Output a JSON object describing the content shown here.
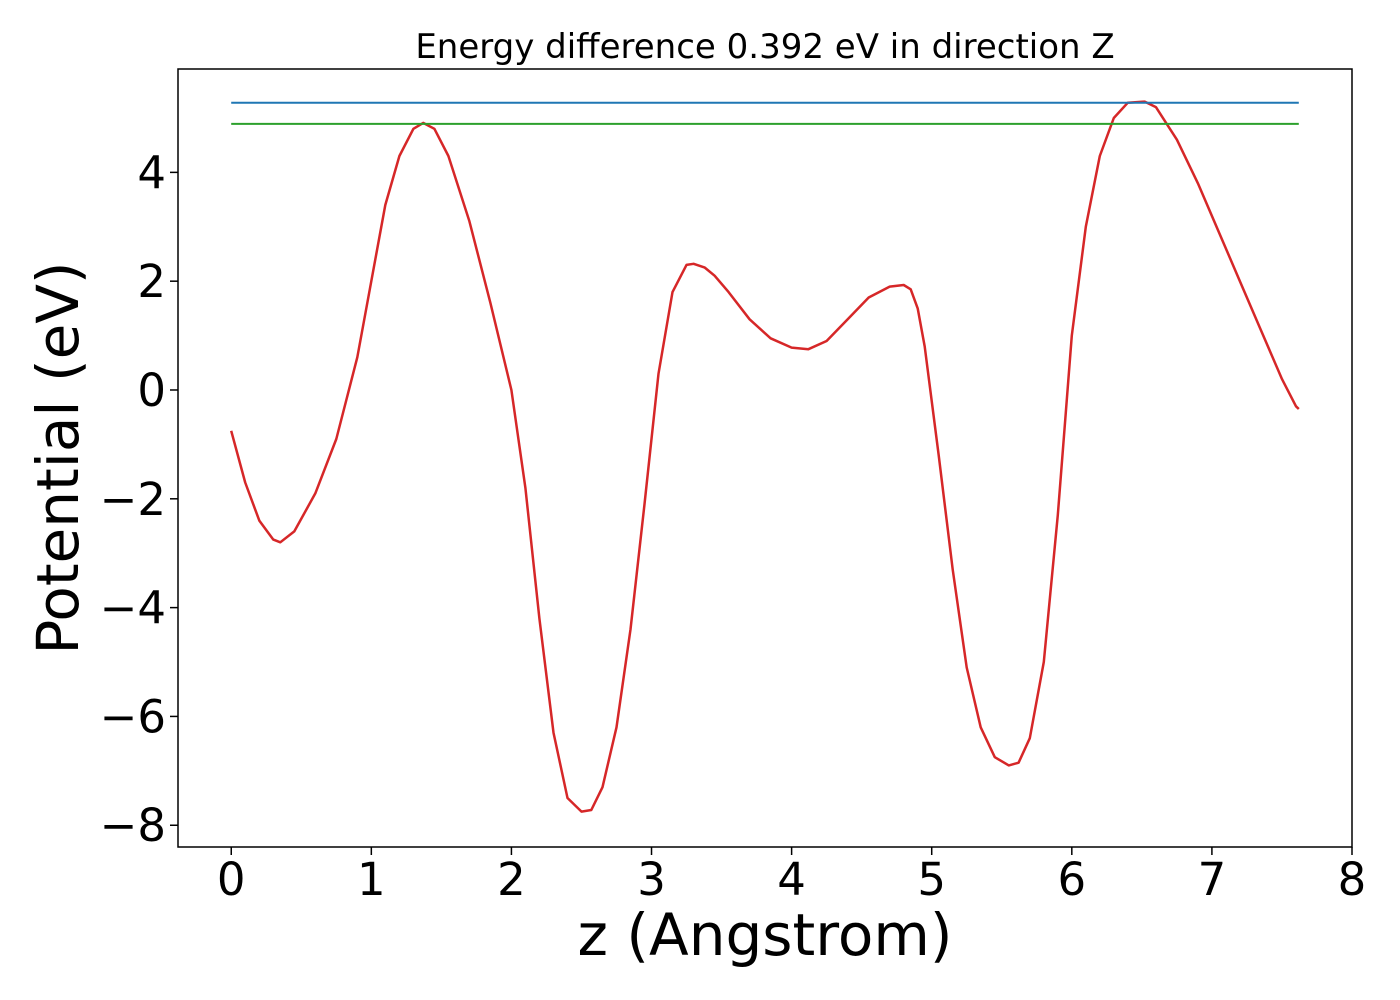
{
  "chart_data": {
    "type": "line",
    "title": "Energy difference 0.392 eV in direction Z",
    "xlabel": "z (Angstrom)",
    "ylabel": "Potential (eV)",
    "xlim": [
      -0.38,
      8.0
    ],
    "ylim": [
      -8.4,
      5.9
    ],
    "xticks": [
      0,
      1,
      2,
      3,
      4,
      5,
      6,
      7,
      8
    ],
    "xtick_labels": [
      "0",
      "1",
      "2",
      "3",
      "4",
      "5",
      "6",
      "7",
      "8"
    ],
    "yticks": [
      -8,
      -6,
      -4,
      -2,
      0,
      2,
      4
    ],
    "ytick_labels": [
      "−8",
      "−6",
      "−4",
      "−2",
      "0",
      "2",
      "4"
    ],
    "grid": false,
    "series": [
      {
        "color": "#d62728",
        "x": [
          0.0,
          0.1,
          0.2,
          0.3,
          0.35,
          0.45,
          0.6,
          0.75,
          0.9,
          1.0,
          1.1,
          1.2,
          1.3,
          1.37,
          1.45,
          1.55,
          1.7,
          1.85,
          2.0,
          2.1,
          2.2,
          2.3,
          2.4,
          2.5,
          2.57,
          2.65,
          2.75,
          2.85,
          2.95,
          3.05,
          3.15,
          3.25,
          3.3,
          3.38,
          3.45,
          3.55,
          3.7,
          3.85,
          4.0,
          4.12,
          4.25,
          4.4,
          4.55,
          4.7,
          4.8,
          4.85,
          4.9,
          4.95,
          5.05,
          5.15,
          5.25,
          5.35,
          5.45,
          5.55,
          5.62,
          5.7,
          5.8,
          5.9,
          6.0,
          6.1,
          6.2,
          6.3,
          6.4,
          6.52,
          6.6,
          6.75,
          6.9,
          7.05,
          7.2,
          7.35,
          7.5,
          7.6,
          7.62
        ],
        "y": [
          -0.75,
          -1.7,
          -2.4,
          -2.75,
          -2.8,
          -2.6,
          -1.9,
          -0.9,
          0.6,
          2.0,
          3.4,
          4.3,
          4.8,
          4.91,
          4.8,
          4.3,
          3.1,
          1.6,
          0.0,
          -1.8,
          -4.2,
          -6.3,
          -7.5,
          -7.75,
          -7.72,
          -7.3,
          -6.2,
          -4.4,
          -2.1,
          0.3,
          1.8,
          2.3,
          2.32,
          2.25,
          2.1,
          1.8,
          1.3,
          0.95,
          0.78,
          0.75,
          0.9,
          1.3,
          1.7,
          1.9,
          1.93,
          1.85,
          1.5,
          0.8,
          -1.2,
          -3.3,
          -5.1,
          -6.2,
          -6.75,
          -6.9,
          -6.85,
          -6.4,
          -5.0,
          -2.3,
          1.0,
          3.0,
          4.3,
          5.0,
          5.28,
          5.3,
          5.2,
          4.6,
          3.8,
          2.9,
          2.0,
          1.1,
          0.2,
          -0.3,
          -0.35
        ]
      },
      {
        "color": "#1f77b4",
        "x": [
          0.0,
          7.62
        ],
        "y": [
          5.28,
          5.28
        ]
      },
      {
        "color": "#2ca02c",
        "x": [
          0.0,
          7.62
        ],
        "y": [
          4.89,
          4.89
        ]
      }
    ]
  }
}
